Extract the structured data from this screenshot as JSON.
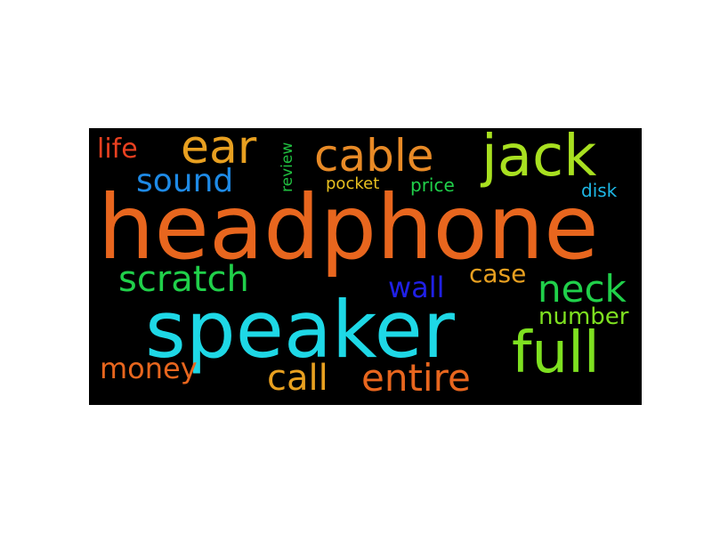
{
  "wordcloud": {
    "background": "#000000",
    "words": [
      {
        "id": "headphone",
        "text": "headphone",
        "color": "#e8661e"
      },
      {
        "id": "speaker",
        "text": "speaker",
        "color": "#1ed8e6"
      },
      {
        "id": "jack",
        "text": "jack",
        "color": "#a8e020"
      },
      {
        "id": "cable",
        "text": "cable",
        "color": "#e88a26"
      },
      {
        "id": "ear",
        "text": "ear",
        "color": "#e8a020"
      },
      {
        "id": "full",
        "text": "full",
        "color": "#7ee020"
      },
      {
        "id": "neck",
        "text": "neck",
        "color": "#20d04a"
      },
      {
        "id": "entire",
        "text": "entire",
        "color": "#e8661e"
      },
      {
        "id": "call",
        "text": "call",
        "color": "#e8a020"
      },
      {
        "id": "scratch",
        "text": "scratch",
        "color": "#20d04a"
      },
      {
        "id": "sound",
        "text": "sound",
        "color": "#1e8ae6"
      },
      {
        "id": "money",
        "text": "money",
        "color": "#e8661e"
      },
      {
        "id": "wall",
        "text": "wall",
        "color": "#2020e6"
      },
      {
        "id": "life",
        "text": "life",
        "color": "#e84020"
      },
      {
        "id": "case",
        "text": "case",
        "color": "#e8a020"
      },
      {
        "id": "number",
        "text": "number",
        "color": "#7ee020"
      },
      {
        "id": "review",
        "text": "review",
        "color": "#20c040"
      },
      {
        "id": "pocket",
        "text": "pocket",
        "color": "#e8c020"
      },
      {
        "id": "price",
        "text": "price",
        "color": "#20d04a"
      },
      {
        "id": "disk",
        "text": "disk",
        "color": "#1eb8e6"
      }
    ]
  }
}
